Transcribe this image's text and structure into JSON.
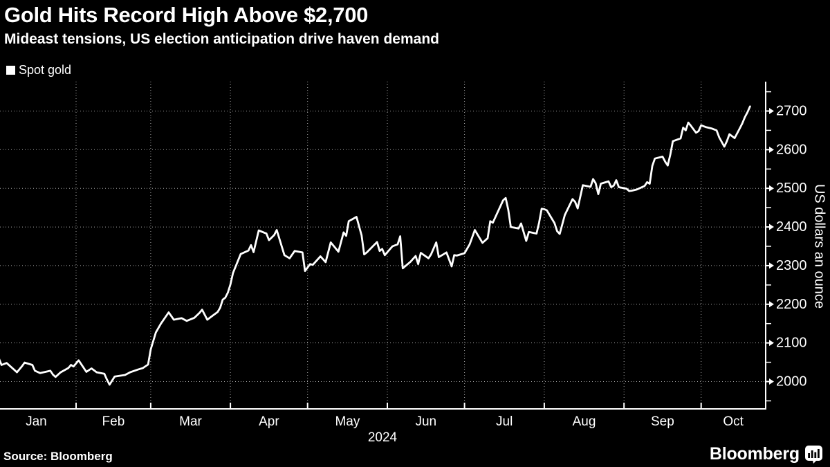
{
  "header": {
    "title": "Gold Hits Record High Above $2,700",
    "subtitle": "Mideast tensions, US election anticipation drive haven demand"
  },
  "legend": {
    "label": "Spot gold",
    "swatch_color": "#ffffff"
  },
  "footer": {
    "source": "Source: Bloomberg",
    "logo_text": "Bloomberg"
  },
  "colors": {
    "background": "#000000",
    "text": "#ffffff",
    "grid": "#a8a8a8",
    "axis": "#ffffff",
    "line": "#ffffff"
  },
  "chart_data": {
    "type": "line",
    "title": "Gold Hits Record High Above $2,700",
    "subtitle": "Mideast tensions, US election anticipation drive haven demand",
    "legend_position": "top-left",
    "grid": "dotted",
    "x_axis": {
      "unit": "day-of-year-2024",
      "year_label": "2024",
      "month_labels": [
        "Jan",
        "Feb",
        "Mar",
        "Apr",
        "May",
        "Jun",
        "Jul",
        "Aug",
        "Sep",
        "Oct"
      ],
      "month_start_doys": [
        1,
        32,
        61,
        92,
        122,
        153,
        183,
        214,
        245,
        275
      ],
      "end_doy": 300
    },
    "y_axis": {
      "title": "US dollars an ounce",
      "labels": [
        2000,
        2100,
        2200,
        2300,
        2400,
        2500,
        2600,
        2700
      ],
      "minor_step": 50,
      "minor_min": 1950,
      "minor_max": 2750,
      "range_shown": [
        1930,
        2780
      ],
      "side": "right"
    },
    "series": [
      {
        "name": "Spot gold",
        "color": "#ffffff",
        "points": [
          [
            2,
            2060
          ],
          [
            3,
            2043
          ],
          [
            5,
            2048
          ],
          [
            8,
            2030
          ],
          [
            9,
            2024
          ],
          [
            11,
            2040
          ],
          [
            12,
            2049
          ],
          [
            15,
            2043
          ],
          [
            16,
            2028
          ],
          [
            18,
            2022
          ],
          [
            22,
            2028
          ],
          [
            23,
            2018
          ],
          [
            24,
            2012
          ],
          [
            26,
            2024
          ],
          [
            29,
            2035
          ],
          [
            30,
            2043
          ],
          [
            31,
            2039
          ],
          [
            33,
            2055
          ],
          [
            36,
            2025
          ],
          [
            38,
            2034
          ],
          [
            40,
            2024
          ],
          [
            43,
            2020
          ],
          [
            44,
            2005
          ],
          [
            45,
            1992
          ],
          [
            47,
            2013
          ],
          [
            51,
            2017
          ],
          [
            53,
            2024
          ],
          [
            56,
            2031
          ],
          [
            58,
            2035
          ],
          [
            60,
            2044
          ],
          [
            61,
            2083
          ],
          [
            63,
            2127
          ],
          [
            65,
            2150
          ],
          [
            68,
            2179
          ],
          [
            70,
            2160
          ],
          [
            73,
            2164
          ],
          [
            75,
            2157
          ],
          [
            78,
            2165
          ],
          [
            80,
            2178
          ],
          [
            81,
            2186
          ],
          [
            83,
            2160
          ],
          [
            85,
            2170
          ],
          [
            87,
            2180
          ],
          [
            88,
            2191
          ],
          [
            89,
            2212
          ],
          [
            90,
            2217
          ],
          [
            91,
            2230
          ],
          [
            92,
            2251
          ],
          [
            93,
            2281
          ],
          [
            96,
            2330
          ],
          [
            99,
            2339
          ],
          [
            100,
            2353
          ],
          [
            101,
            2335
          ],
          [
            103,
            2391
          ],
          [
            106,
            2383
          ],
          [
            107,
            2366
          ],
          [
            109,
            2379
          ],
          [
            110,
            2392
          ],
          [
            113,
            2327
          ],
          [
            115,
            2319
          ],
          [
            117,
            2338
          ],
          [
            120,
            2334
          ],
          [
            121,
            2286
          ],
          [
            123,
            2304
          ],
          [
            124,
            2302
          ],
          [
            127,
            2324
          ],
          [
            129,
            2309
          ],
          [
            131,
            2360
          ],
          [
            134,
            2336
          ],
          [
            136,
            2386
          ],
          [
            137,
            2377
          ],
          [
            138,
            2415
          ],
          [
            141,
            2426
          ],
          [
            143,
            2378
          ],
          [
            144,
            2329
          ],
          [
            145,
            2334
          ],
          [
            149,
            2361
          ],
          [
            150,
            2338
          ],
          [
            151,
            2343
          ],
          [
            152,
            2327
          ],
          [
            155,
            2350
          ],
          [
            157,
            2355
          ],
          [
            158,
            2376
          ],
          [
            159,
            2293
          ],
          [
            162,
            2310
          ],
          [
            164,
            2325
          ],
          [
            165,
            2304
          ],
          [
            166,
            2333
          ],
          [
            169,
            2319
          ],
          [
            170,
            2329
          ],
          [
            172,
            2360
          ],
          [
            173,
            2322
          ],
          [
            176,
            2334
          ],
          [
            178,
            2298
          ],
          [
            179,
            2327
          ],
          [
            180,
            2326
          ],
          [
            183,
            2332
          ],
          [
            185,
            2355
          ],
          [
            187,
            2392
          ],
          [
            190,
            2359
          ],
          [
            192,
            2371
          ],
          [
            193,
            2415
          ],
          [
            194,
            2411
          ],
          [
            198,
            2469
          ],
          [
            199,
            2475
          ],
          [
            200,
            2445
          ],
          [
            201,
            2400
          ],
          [
            204,
            2396
          ],
          [
            205,
            2409
          ],
          [
            207,
            2364
          ],
          [
            208,
            2387
          ],
          [
            211,
            2383
          ],
          [
            212,
            2411
          ],
          [
            213,
            2447
          ],
          [
            214,
            2446
          ],
          [
            215,
            2443
          ],
          [
            218,
            2410
          ],
          [
            219,
            2389
          ],
          [
            220,
            2382
          ],
          [
            222,
            2431
          ],
          [
            225,
            2472
          ],
          [
            226,
            2465
          ],
          [
            227,
            2448
          ],
          [
            229,
            2508
          ],
          [
            232,
            2504
          ],
          [
            233,
            2524
          ],
          [
            234,
            2513
          ],
          [
            235,
            2485
          ],
          [
            236,
            2512
          ],
          [
            239,
            2518
          ],
          [
            240,
            2503
          ],
          [
            241,
            2507
          ],
          [
            242,
            2521
          ],
          [
            243,
            2503
          ],
          [
            246,
            2499
          ],
          [
            247,
            2493
          ],
          [
            248,
            2494
          ],
          [
            250,
            2497
          ],
          [
            253,
            2506
          ],
          [
            254,
            2516
          ],
          [
            255,
            2512
          ],
          [
            256,
            2558
          ],
          [
            257,
            2577
          ],
          [
            260,
            2582
          ],
          [
            261,
            2569
          ],
          [
            262,
            2559
          ],
          [
            263,
            2587
          ],
          [
            264,
            2622
          ],
          [
            267,
            2629
          ],
          [
            268,
            2657
          ],
          [
            269,
            2650
          ],
          [
            270,
            2670
          ],
          [
            271,
            2662
          ],
          [
            273,
            2644
          ],
          [
            274,
            2648
          ],
          [
            275,
            2663
          ],
          [
            277,
            2658
          ],
          [
            279,
            2655
          ],
          [
            281,
            2650
          ],
          [
            282,
            2632
          ],
          [
            284,
            2608
          ],
          [
            285,
            2622
          ],
          [
            286,
            2640
          ],
          [
            288,
            2630
          ],
          [
            290,
            2655
          ],
          [
            291,
            2668
          ],
          [
            292,
            2684
          ],
          [
            293,
            2697
          ],
          [
            294,
            2712
          ]
        ]
      }
    ]
  }
}
